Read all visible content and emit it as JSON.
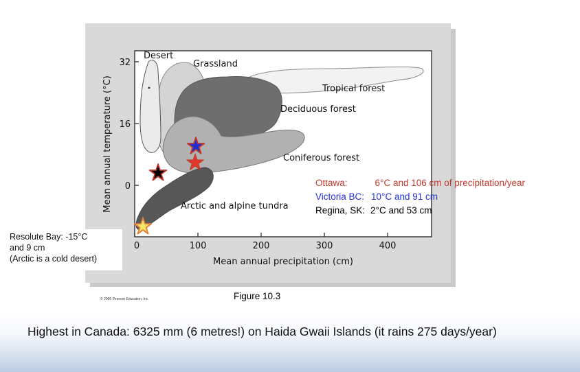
{
  "figure": {
    "y_axis_label": "Mean annual temperature (°C)",
    "x_axis_label": "Mean annual precipitation (cm)",
    "y_ticks": [
      "32",
      "16",
      "0"
    ],
    "x_ticks": [
      "0",
      "100",
      "200",
      "300",
      "400"
    ],
    "biomes": {
      "desert": "Desert",
      "grassland": "Grassland",
      "tropical_forest": "Tropical forest",
      "deciduous_forest": "Deciduous forest",
      "coniferous_forest": "Coniferous forest",
      "tundra": "Arctic and alpine tundra"
    },
    "copyright": "© 2006 Pearson Education, Inc.",
    "caption": "Figure 10.3"
  },
  "colors": {
    "ottawa": "#c0392b",
    "victoria": "#1f2fd6",
    "regina": "#000000",
    "resolute": "#f5e663"
  },
  "annotations": {
    "ottawa": {
      "name": "Ottawa:",
      "value": "6°C and 106 cm of precipitation/year"
    },
    "victoria": {
      "name": "Victoria BC:",
      "value": "10°C and 91 cm"
    },
    "regina": {
      "name": "Regina, SK:",
      "value": "2°C and 53 cm"
    },
    "resolute": [
      "Resolute Bay: -15°C",
      "and 9 cm",
      "(Arctic is a cold desert)"
    ]
  },
  "footer": {
    "text": "Highest in Canada: 6325 mm (6 metres!) on Haida Gwaii Islands (it rains 275 days/year)"
  }
}
